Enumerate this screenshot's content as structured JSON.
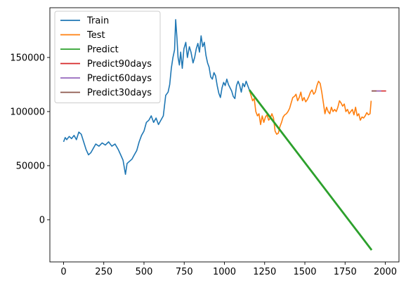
{
  "chart_data": {
    "type": "line",
    "title": "",
    "xlabel": "",
    "ylabel": "",
    "xlim": [
      -85,
      2085
    ],
    "ylim": [
      -39000,
      196000
    ],
    "x_ticks": [
      0,
      250,
      500,
      750,
      1000,
      1250,
      1500,
      1750,
      2000
    ],
    "y_ticks": [
      0,
      50000,
      100000,
      150000
    ],
    "grid": false,
    "legend_position": "upper-left",
    "series": [
      {
        "name": "Train",
        "color": "#1f77b4",
        "points": [
          [
            0,
            72000
          ],
          [
            10,
            76000
          ],
          [
            20,
            74000
          ],
          [
            35,
            77000
          ],
          [
            50,
            75000
          ],
          [
            65,
            78000
          ],
          [
            80,
            74000
          ],
          [
            95,
            81000
          ],
          [
            110,
            79000
          ],
          [
            125,
            72000
          ],
          [
            140,
            65000
          ],
          [
            155,
            60000
          ],
          [
            170,
            62000
          ],
          [
            185,
            66000
          ],
          [
            200,
            70000
          ],
          [
            220,
            68000
          ],
          [
            240,
            71000
          ],
          [
            260,
            69000
          ],
          [
            280,
            72000
          ],
          [
            300,
            68000
          ],
          [
            320,
            70000
          ],
          [
            340,
            65000
          ],
          [
            355,
            60000
          ],
          [
            370,
            55000
          ],
          [
            385,
            42000
          ],
          [
            395,
            52000
          ],
          [
            410,
            54000
          ],
          [
            425,
            56000
          ],
          [
            440,
            60000
          ],
          [
            455,
            64000
          ],
          [
            470,
            72000
          ],
          [
            485,
            78000
          ],
          [
            500,
            82000
          ],
          [
            515,
            90000
          ],
          [
            530,
            92000
          ],
          [
            545,
            96000
          ],
          [
            560,
            90000
          ],
          [
            575,
            94000
          ],
          [
            590,
            88000
          ],
          [
            605,
            92000
          ],
          [
            620,
            96000
          ],
          [
            635,
            115000
          ],
          [
            650,
            118000
          ],
          [
            660,
            125000
          ],
          [
            670,
            140000
          ],
          [
            680,
            150000
          ],
          [
            690,
            157000
          ],
          [
            697,
            185000
          ],
          [
            705,
            168000
          ],
          [
            712,
            150000
          ],
          [
            720,
            143000
          ],
          [
            728,
            155000
          ],
          [
            738,
            140000
          ],
          [
            748,
            158000
          ],
          [
            760,
            164000
          ],
          [
            770,
            150000
          ],
          [
            782,
            160000
          ],
          [
            792,
            155000
          ],
          [
            805,
            145000
          ],
          [
            815,
            150000
          ],
          [
            825,
            158000
          ],
          [
            835,
            163000
          ],
          [
            845,
            155000
          ],
          [
            855,
            170000
          ],
          [
            865,
            160000
          ],
          [
            875,
            164000
          ],
          [
            885,
            152000
          ],
          [
            895,
            145000
          ],
          [
            905,
            141000
          ],
          [
            915,
            132000
          ],
          [
            925,
            130000
          ],
          [
            935,
            136000
          ],
          [
            945,
            133000
          ],
          [
            955,
            124000
          ],
          [
            965,
            117000
          ],
          [
            975,
            113000
          ],
          [
            985,
            122000
          ],
          [
            995,
            127000
          ],
          [
            1005,
            124000
          ],
          [
            1015,
            130000
          ],
          [
            1025,
            125000
          ],
          [
            1035,
            122000
          ],
          [
            1045,
            119000
          ],
          [
            1055,
            114000
          ],
          [
            1065,
            112000
          ],
          [
            1075,
            124000
          ],
          [
            1085,
            128000
          ],
          [
            1095,
            124000
          ],
          [
            1105,
            118000
          ],
          [
            1115,
            126000
          ],
          [
            1125,
            123000
          ],
          [
            1135,
            128000
          ],
          [
            1145,
            124000
          ],
          [
            1155,
            120000
          ]
        ]
      },
      {
        "name": "Test",
        "color": "#ff7f0e",
        "points": [
          [
            1155,
            120000
          ],
          [
            1165,
            115000
          ],
          [
            1175,
            110000
          ],
          [
            1185,
            112000
          ],
          [
            1195,
            100000
          ],
          [
            1205,
            96000
          ],
          [
            1215,
            98000
          ],
          [
            1225,
            88000
          ],
          [
            1235,
            96000
          ],
          [
            1245,
            90000
          ],
          [
            1255,
            95000
          ],
          [
            1265,
            97000
          ],
          [
            1275,
            92000
          ],
          [
            1285,
            94000
          ],
          [
            1295,
            98000
          ],
          [
            1305,
            94000
          ],
          [
            1315,
            82000
          ],
          [
            1325,
            79000
          ],
          [
            1335,
            80000
          ],
          [
            1345,
            86000
          ],
          [
            1355,
            90000
          ],
          [
            1365,
            95000
          ],
          [
            1375,
            97000
          ],
          [
            1385,
            98000
          ],
          [
            1395,
            100000
          ],
          [
            1405,
            103000
          ],
          [
            1415,
            108000
          ],
          [
            1425,
            113000
          ],
          [
            1435,
            114000
          ],
          [
            1445,
            116000
          ],
          [
            1455,
            110000
          ],
          [
            1465,
            113000
          ],
          [
            1475,
            118000
          ],
          [
            1485,
            110000
          ],
          [
            1495,
            113000
          ],
          [
            1505,
            109000
          ],
          [
            1515,
            111000
          ],
          [
            1525,
            114000
          ],
          [
            1535,
            118000
          ],
          [
            1545,
            120000
          ],
          [
            1555,
            116000
          ],
          [
            1565,
            118000
          ],
          [
            1575,
            124000
          ],
          [
            1585,
            128000
          ],
          [
            1595,
            126000
          ],
          [
            1605,
            118000
          ],
          [
            1615,
            108000
          ],
          [
            1625,
            98000
          ],
          [
            1635,
            104000
          ],
          [
            1645,
            100000
          ],
          [
            1655,
            98000
          ],
          [
            1665,
            104000
          ],
          [
            1675,
            100000
          ],
          [
            1685,
            102000
          ],
          [
            1695,
            100000
          ],
          [
            1705,
            104000
          ],
          [
            1715,
            110000
          ],
          [
            1725,
            108000
          ],
          [
            1735,
            105000
          ],
          [
            1745,
            107000
          ],
          [
            1755,
            100000
          ],
          [
            1765,
            102000
          ],
          [
            1775,
            98000
          ],
          [
            1785,
            100000
          ],
          [
            1795,
            102000
          ],
          [
            1805,
            97000
          ],
          [
            1815,
            104000
          ],
          [
            1825,
            96000
          ],
          [
            1835,
            98000
          ],
          [
            1845,
            92000
          ],
          [
            1855,
            95000
          ],
          [
            1865,
            94000
          ],
          [
            1875,
            96000
          ],
          [
            1885,
            99000
          ],
          [
            1895,
            97000
          ],
          [
            1905,
            98000
          ],
          [
            1912,
            110000
          ]
        ]
      },
      {
        "name": "Predict",
        "color": "#2ca02c",
        "points": [
          [
            1155,
            120000
          ],
          [
            1915,
            -28000
          ]
        ]
      },
      {
        "name": "Predict90days",
        "color": "#d62728",
        "points": [
          [
            1915,
            119000
          ],
          [
            2005,
            119000
          ]
        ]
      },
      {
        "name": "Predict60days",
        "color": "#9467bd",
        "points": [
          [
            1915,
            119000
          ],
          [
            1975,
            119000
          ]
        ]
      },
      {
        "name": "Predict30days",
        "color": "#8c564b",
        "points": [
          [
            1915,
            119000
          ],
          [
            1945,
            119000
          ]
        ]
      }
    ]
  }
}
